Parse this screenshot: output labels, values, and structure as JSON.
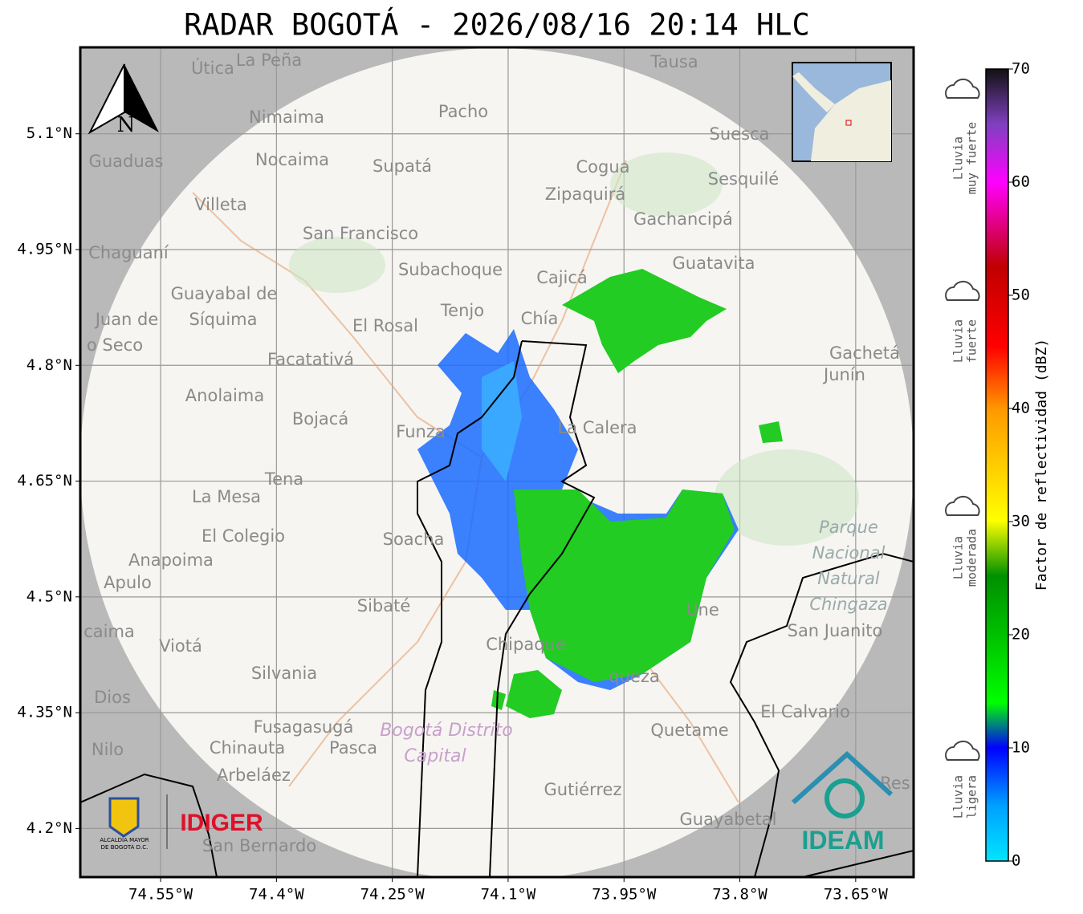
{
  "title": "RADAR BOGOTÁ - 2026/08/16 20:14 HLC",
  "map": {
    "lon_range": [
      -74.654,
      -73.575
    ],
    "lat_range": [
      4.137,
      5.212
    ],
    "xticks": [
      {
        "value": -74.55,
        "label": "74.55°W"
      },
      {
        "value": -74.4,
        "label": "74.4°W"
      },
      {
        "value": -74.25,
        "label": "74.25°W"
      },
      {
        "value": -74.1,
        "label": "74.1°W"
      },
      {
        "value": -73.95,
        "label": "73.95°W"
      },
      {
        "value": -73.8,
        "label": "73.8°W"
      },
      {
        "value": -73.65,
        "label": "73.65°W"
      }
    ],
    "yticks": [
      {
        "value": 5.1,
        "label": "5.1°N"
      },
      {
        "value": 4.95,
        "label": "4.95°N"
      },
      {
        "value": 4.8,
        "label": "4.8°N"
      },
      {
        "value": 4.65,
        "label": "4.65°N"
      },
      {
        "value": 4.5,
        "label": "4.5°N"
      },
      {
        "value": 4.35,
        "label": "4.35°N"
      },
      {
        "value": 4.2,
        "label": "4.2°N"
      }
    ],
    "grid": true,
    "places": [
      "Útica",
      "La Peña",
      "Tausa",
      "Pacho",
      "Nimaima",
      "Guaduas",
      "Nocaima",
      "Supatá",
      "Cogua",
      "Suesca",
      "Sesquilé",
      "Zipaquirá",
      "Villeta",
      "Gachancipá",
      "San Francisco",
      "Chaguaní",
      "Subachoque",
      "Guatavita",
      "Cajicá",
      "Guayabal de",
      "Síquima",
      "Juan de",
      "o Seco",
      "Tenjo",
      "Chía",
      "El Rosal",
      "Facatativá",
      "Gachetá",
      "Junín",
      "Anolaima",
      "Bojacá",
      "Funza",
      "La Calera",
      "Tena",
      "La Mesa",
      "El Colegio",
      "Soacha",
      "Anapoima",
      "Apulo",
      "Sibaté",
      "San Juanito",
      "caima",
      "Viotá",
      "Chipaque",
      "Une",
      "Silvania",
      "queza",
      "Dios",
      "El Calvario",
      "Fusagasugá",
      "Quetame",
      "Nilo",
      "Chinauta",
      "Pasca",
      "Arbeláez",
      "Gutiérrez",
      "Guayabetal",
      "San Bernardo",
      "Res"
    ],
    "parks": [
      "Parque",
      "Nacional",
      "Natural",
      "Chingaza"
    ],
    "district": [
      "Bogotá Distrito",
      "Capital"
    ],
    "north": "N"
  },
  "colorbar": {
    "label": "Factor de reflectividad (dBZ)",
    "lim": [
      0,
      70
    ],
    "ticks": [
      0,
      10,
      20,
      30,
      40,
      50,
      60,
      70
    ]
  },
  "rain_classes": [
    [
      "Lluvia",
      "muy fuerte"
    ],
    [
      "Lluvia",
      "fuerte"
    ],
    [
      "Lluvia",
      "moderada"
    ],
    [
      "Lluvia",
      "ligera"
    ]
  ],
  "logos": {
    "alcaldia": [
      "ALCALDÍA MAYOR",
      "DE BOGOTÁ D.C."
    ],
    "idiger": "IDIGER",
    "ideam": "IDEAM"
  }
}
